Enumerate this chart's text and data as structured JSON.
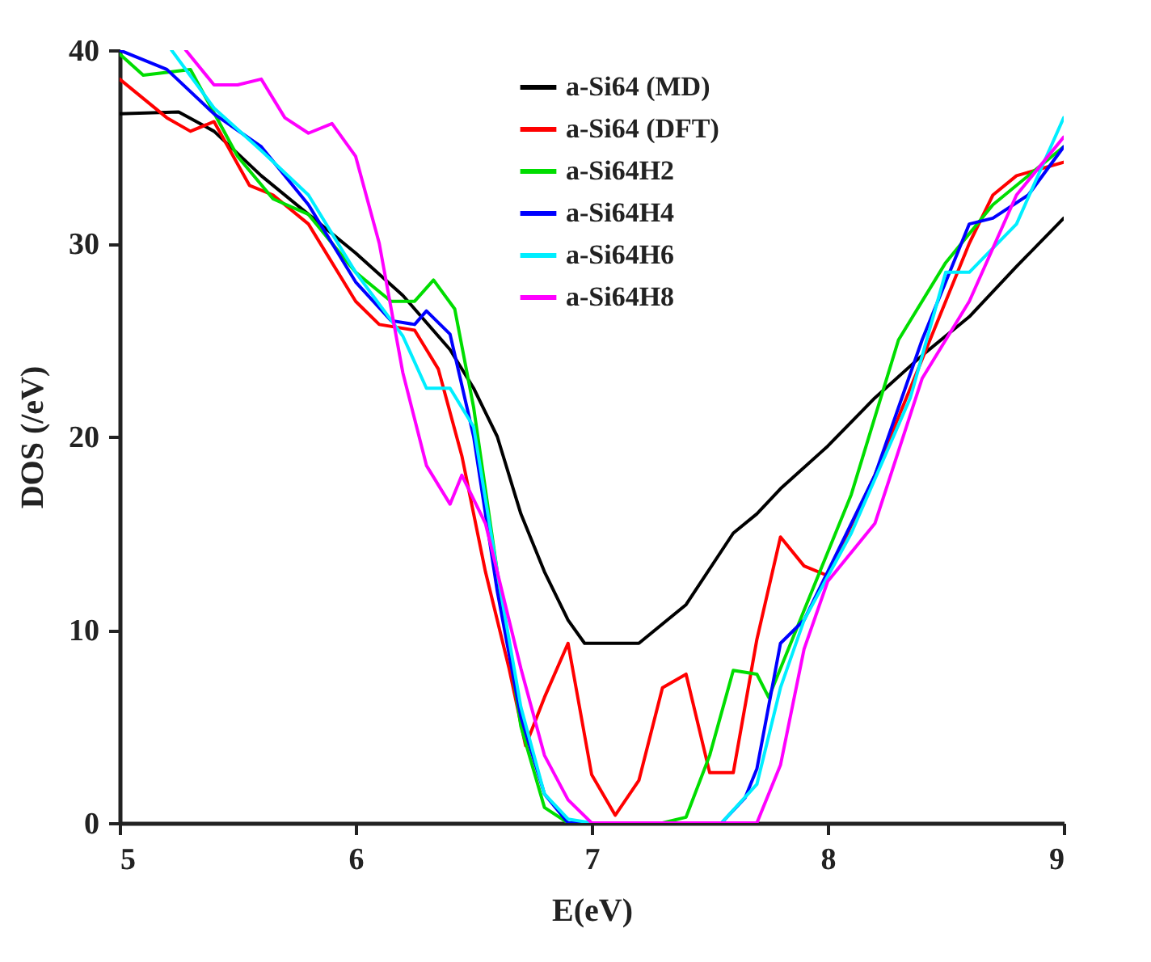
{
  "chart_data": {
    "type": "line",
    "xlabel": "E(eV)",
    "ylabel": "DOS (/eV)",
    "xlim": [
      5,
      9
    ],
    "ylim": [
      0,
      40
    ],
    "xticks": [
      5,
      6,
      7,
      8,
      9
    ],
    "yticks": [
      0,
      10,
      20,
      30,
      40
    ],
    "grid": false,
    "legend": "top right",
    "marker": "none",
    "line_style": "solid",
    "series": [
      {
        "name": "a-Si64 (MD)",
        "color": "#000000",
        "x": [
          5,
          5.25,
          5.4,
          5.6,
          5.8,
          6.0,
          6.2,
          6.4,
          6.5,
          6.6,
          6.7,
          6.8,
          6.9,
          6.97,
          7.2,
          7.4,
          7.6,
          7.7,
          7.8,
          8.0,
          8.2,
          8.4,
          8.6,
          8.8,
          9.0
        ],
        "values": [
          36.7,
          36.8,
          35.8,
          33.5,
          31.5,
          29.5,
          27.3,
          24.5,
          22.5,
          20,
          16,
          13,
          10.5,
          9.3,
          9.3,
          11.3,
          15,
          16,
          17.3,
          19.5,
          22,
          24.2,
          26.2,
          28.8,
          31.3
        ]
      },
      {
        "name": "a-Si64 (DFT)",
        "color": "#ff0000",
        "x": [
          5,
          5.2,
          5.3,
          5.4,
          5.55,
          5.65,
          5.8,
          6.0,
          6.1,
          6.25,
          6.35,
          6.45,
          6.55,
          6.65,
          6.72,
          6.8,
          6.9,
          7.0,
          7.1,
          7.2,
          7.3,
          7.4,
          7.5,
          7.6,
          7.7,
          7.8,
          7.9,
          8.0,
          8.2,
          8.4,
          8.6,
          8.7,
          8.8,
          9.0
        ],
        "values": [
          38.5,
          36.5,
          35.8,
          36.3,
          33,
          32.5,
          31,
          27,
          25.8,
          25.5,
          23.5,
          19,
          13,
          8,
          4,
          6.5,
          9.3,
          2.5,
          0.4,
          2.2,
          7,
          7.7,
          2.6,
          2.6,
          9.5,
          14.8,
          13.3,
          12.8,
          18,
          24,
          30,
          32.5,
          33.5,
          34.2
        ]
      },
      {
        "name": "a-Si64H2",
        "color": "#00dd00",
        "x": [
          5,
          5.1,
          5.3,
          5.5,
          5.65,
          5.8,
          6.0,
          6.15,
          6.25,
          6.33,
          6.42,
          6.5,
          6.6,
          6.7,
          6.8,
          6.9,
          7.3,
          7.4,
          7.5,
          7.6,
          7.7,
          7.75,
          7.9,
          8.1,
          8.3,
          8.5,
          8.7,
          9.0
        ],
        "values": [
          39.8,
          38.7,
          39,
          34.5,
          32.3,
          31.5,
          28.5,
          27,
          27,
          28.1,
          26.6,
          21.5,
          13,
          5,
          0.8,
          0,
          0,
          0.3,
          3.5,
          7.9,
          7.7,
          6.5,
          11,
          17,
          25,
          29,
          32,
          35
        ]
      },
      {
        "name": "a-Si64H4",
        "color": "#0000ff",
        "x": [
          5,
          5.2,
          5.4,
          5.6,
          5.8,
          6.0,
          6.15,
          6.25,
          6.3,
          6.4,
          6.5,
          6.6,
          6.7,
          6.8,
          6.9,
          7.55,
          7.65,
          7.7,
          7.8,
          7.9,
          8.0,
          8.2,
          8.4,
          8.6,
          8.7,
          8.85,
          9.0
        ],
        "values": [
          40,
          39,
          36.7,
          35,
          32,
          28,
          26,
          25.8,
          26.5,
          25.3,
          20,
          12,
          5.5,
          1.5,
          0,
          0,
          1.3,
          2.8,
          9.3,
          10.5,
          13,
          18,
          25,
          31,
          31.3,
          32.5,
          35
        ]
      },
      {
        "name": "a-Si64H6",
        "color": "#00eeff",
        "x": [
          5.22,
          5.4,
          5.6,
          5.8,
          6.0,
          6.2,
          6.3,
          6.4,
          6.5,
          6.6,
          6.7,
          6.8,
          6.9,
          7.0,
          7.55,
          7.7,
          7.8,
          7.9,
          8.1,
          8.35,
          8.5,
          8.6,
          8.8,
          9.0
        ],
        "values": [
          40,
          37,
          34.8,
          32.5,
          28.5,
          25.2,
          22.5,
          22.5,
          20.5,
          13,
          6,
          1.5,
          0.2,
          0,
          0,
          2,
          7,
          10.5,
          15,
          22,
          28.5,
          28.5,
          31,
          36.5
        ]
      },
      {
        "name": "a-Si64H8",
        "color": "#ff00ff",
        "x": [
          5.28,
          5.4,
          5.5,
          5.6,
          5.7,
          5.8,
          5.9,
          6.0,
          6.1,
          6.2,
          6.3,
          6.4,
          6.45,
          6.55,
          6.7,
          6.8,
          6.9,
          7.0,
          7.7,
          7.8,
          7.9,
          8.0,
          8.2,
          8.4,
          8.6,
          8.8,
          9.0
        ],
        "values": [
          40,
          38.2,
          38.2,
          38.5,
          36.5,
          35.7,
          36.2,
          34.5,
          30,
          23.3,
          18.5,
          16.5,
          18,
          15.5,
          8,
          3.5,
          1.2,
          0,
          0,
          3,
          9,
          12.5,
          15.5,
          23,
          27,
          32.5,
          35.5
        ]
      }
    ]
  }
}
